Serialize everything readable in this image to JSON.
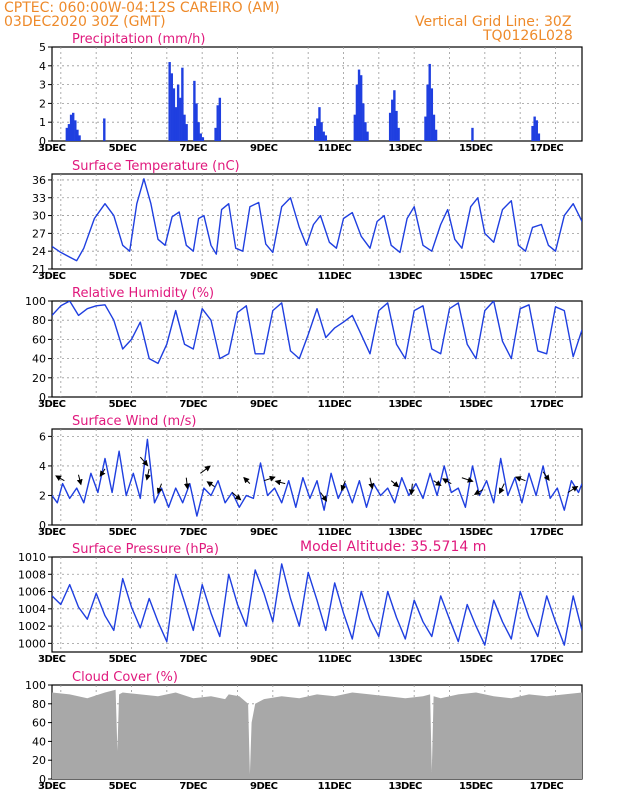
{
  "header": {
    "line1": "CPTEC:   060:00W-04:12S   CAREIRO (AM)",
    "line2": "03DEC2020 30Z (GMT)",
    "grid_note": "Vertical Grid Line: 30Z",
    "code": "TQ0126L028",
    "altitude": "Model Altitude: 35.5714 m"
  },
  "colors": {
    "header": "#ee8a2a",
    "title": "#e0197d",
    "series": "#1f3fe0",
    "cloud": "#a8a8a8",
    "arrow": "#000000"
  },
  "x_ticks": [
    "3DEC",
    "5DEC",
    "7DEC",
    "9DEC",
    "11DEC",
    "13DEC",
    "15DEC",
    "17DEC"
  ],
  "x_ticks_day": [
    3,
    5,
    7,
    9,
    11,
    13,
    15,
    17
  ],
  "chart_data": [
    {
      "type": "bar",
      "title": "Precipitation (mm/h)",
      "x_unit": "day of December 2020",
      "ylim": [
        0,
        5
      ],
      "yticks": [
        0,
        1,
        2,
        3,
        4,
        5
      ],
      "x": [
        3.42,
        3.48,
        3.54,
        3.6,
        3.66,
        3.72,
        3.78,
        4.48,
        6.33,
        6.39,
        6.45,
        6.51,
        6.57,
        6.63,
        6.69,
        6.75,
        6.81,
        7.03,
        7.09,
        7.15,
        7.21,
        7.27,
        7.63,
        7.69,
        7.75,
        10.45,
        10.51,
        10.57,
        10.63,
        10.69,
        10.75,
        11.57,
        11.63,
        11.69,
        11.75,
        11.81,
        11.87,
        11.93,
        12.57,
        12.63,
        12.69,
        12.75,
        12.81,
        13.57,
        13.63,
        13.69,
        13.75,
        13.81,
        13.87,
        14.9,
        16.6,
        16.66,
        16.72,
        16.78
      ],
      "values": [
        0.7,
        0.9,
        1.4,
        1.5,
        1.1,
        0.6,
        0.3,
        1.2,
        4.2,
        3.6,
        2.8,
        1.8,
        3.0,
        2.3,
        3.9,
        1.4,
        0.9,
        3.2,
        2.0,
        1.0,
        0.4,
        0.2,
        0.7,
        1.9,
        2.3,
        0.8,
        1.2,
        1.8,
        1.0,
        0.5,
        0.3,
        1.4,
        3.0,
        3.8,
        3.5,
        2.0,
        1.0,
        0.5,
        1.5,
        2.2,
        2.7,
        1.6,
        0.7,
        1.3,
        3.0,
        4.1,
        2.8,
        1.4,
        0.6,
        0.7,
        0.8,
        1.3,
        1.1,
        0.4
      ]
    },
    {
      "type": "line",
      "title": "Surface Temperature (nC)",
      "x_unit": "day of December 2020",
      "ylim": [
        21,
        37
      ],
      "yticks": [
        21,
        24,
        27,
        30,
        33,
        36
      ],
      "x": [
        3,
        3.25,
        3.5,
        3.7,
        3.9,
        4.2,
        4.5,
        4.75,
        5,
        5.2,
        5.4,
        5.6,
        5.8,
        6,
        6.2,
        6.4,
        6.6,
        6.8,
        7,
        7.15,
        7.3,
        7.5,
        7.65,
        7.8,
        8,
        8.2,
        8.4,
        8.6,
        8.85,
        9.05,
        9.25,
        9.5,
        9.75,
        10,
        10.2,
        10.4,
        10.6,
        10.85,
        11.05,
        11.25,
        11.5,
        11.75,
        12,
        12.2,
        12.4,
        12.6,
        12.85,
        13.05,
        13.25,
        13.5,
        13.75,
        14,
        14.2,
        14.4,
        14.6,
        14.85,
        15.05,
        15.25,
        15.5,
        15.75,
        16,
        16.2,
        16.4,
        16.6,
        16.85,
        17.05,
        17.25,
        17.5,
        17.75,
        18
      ],
      "values": [
        24.8,
        23.8,
        23.0,
        22.4,
        24.5,
        29.5,
        32.0,
        30.0,
        25.0,
        24.0,
        32.0,
        36.2,
        32.0,
        26.0,
        25.0,
        29.8,
        30.6,
        25.0,
        24.0,
        29.5,
        30.0,
        25.0,
        23.5,
        31.0,
        32.0,
        24.5,
        24.0,
        31.5,
        32.2,
        25.2,
        23.8,
        31.5,
        33.0,
        28.0,
        25.0,
        28.5,
        30.0,
        25.5,
        24.5,
        29.5,
        30.5,
        26.5,
        24.5,
        29.0,
        30.0,
        25.0,
        23.8,
        29.5,
        31.5,
        25.0,
        24.0,
        28.5,
        31.0,
        26.0,
        24.5,
        31.5,
        33.0,
        27.0,
        25.5,
        31.0,
        32.5,
        25.0,
        24.0,
        28.0,
        28.5,
        25.0,
        24.0,
        30.0,
        32.0,
        29.0
      ]
    },
    {
      "type": "line",
      "title": "Relative Humidity (%)",
      "x_unit": "day of December 2020",
      "ylim": [
        0,
        100
      ],
      "yticks": [
        0,
        20,
        40,
        60,
        80,
        100
      ],
      "x": [
        3,
        3.25,
        3.5,
        3.75,
        4,
        4.25,
        4.5,
        4.75,
        5,
        5.25,
        5.5,
        5.75,
        6,
        6.25,
        6.5,
        6.75,
        7,
        7.25,
        7.5,
        7.75,
        8,
        8.25,
        8.5,
        8.75,
        9,
        9.25,
        9.5,
        9.75,
        10,
        10.25,
        10.5,
        10.75,
        11,
        11.25,
        11.5,
        11.75,
        12,
        12.25,
        12.5,
        12.75,
        13,
        13.25,
        13.5,
        13.75,
        14,
        14.25,
        14.5,
        14.75,
        15,
        15.25,
        15.5,
        15.75,
        16,
        16.25,
        16.5,
        16.75,
        17,
        17.25,
        17.5,
        17.75,
        18
      ],
      "values": [
        85,
        95,
        100,
        85,
        92,
        95,
        96,
        80,
        50,
        60,
        78,
        40,
        35,
        55,
        90,
        55,
        50,
        92,
        80,
        40,
        45,
        88,
        95,
        45,
        45,
        90,
        98,
        48,
        40,
        65,
        92,
        62,
        72,
        78,
        85,
        65,
        45,
        90,
        98,
        55,
        40,
        90,
        95,
        50,
        45,
        92,
        98,
        55,
        40,
        90,
        100,
        58,
        40,
        92,
        96,
        48,
        45,
        94,
        90,
        42,
        70
      ]
    },
    {
      "type": "line",
      "title": "Surface Wind (m/s)",
      "x_unit": "day of December 2020",
      "ylim": [
        0,
        6.5
      ],
      "yticks": [
        0,
        2,
        4,
        6
      ],
      "x": [
        3,
        3.15,
        3.3,
        3.5,
        3.7,
        3.9,
        4.1,
        4.3,
        4.5,
        4.7,
        4.9,
        5.1,
        5.3,
        5.5,
        5.7,
        5.9,
        6.1,
        6.3,
        6.5,
        6.7,
        6.9,
        7.1,
        7.3,
        7.5,
        7.7,
        7.9,
        8.1,
        8.3,
        8.5,
        8.7,
        8.9,
        9.1,
        9.3,
        9.5,
        9.7,
        9.9,
        10.1,
        10.3,
        10.5,
        10.7,
        10.9,
        11.1,
        11.3,
        11.5,
        11.7,
        11.9,
        12.1,
        12.3,
        12.5,
        12.7,
        12.9,
        13.1,
        13.3,
        13.5,
        13.7,
        13.9,
        14.1,
        14.3,
        14.5,
        14.7,
        14.9,
        15.1,
        15.3,
        15.5,
        15.7,
        15.9,
        16.1,
        16.3,
        16.5,
        16.7,
        16.9,
        17.1,
        17.3,
        17.5,
        17.7,
        17.9,
        18
      ],
      "values": [
        2.0,
        1.5,
        2.8,
        1.8,
        2.5,
        1.5,
        3.5,
        2.2,
        4.5,
        2.2,
        5.0,
        2.0,
        3.5,
        1.8,
        5.8,
        1.5,
        2.5,
        1.2,
        2.5,
        1.5,
        2.8,
        0.6,
        2.5,
        2.0,
        3.0,
        1.5,
        2.2,
        1.2,
        2.0,
        1.8,
        4.2,
        2.0,
        2.5,
        1.5,
        3.0,
        1.2,
        3.2,
        1.8,
        3.0,
        1.0,
        3.5,
        1.8,
        2.8,
        1.5,
        3.0,
        1.2,
        2.8,
        2.0,
        2.5,
        1.5,
        3.2,
        2.0,
        2.8,
        1.8,
        3.5,
        2.0,
        4.0,
        2.2,
        2.5,
        1.2,
        4.0,
        2.0,
        3.0,
        1.5,
        4.5,
        2.0,
        3.2,
        1.5,
        3.5,
        2.0,
        4.0,
        1.8,
        2.5,
        1.0,
        3.0,
        2.2,
        2.8
      ],
      "arrows": [
        [
          3.35,
          3.0,
          -0.7,
          0.4
        ],
        [
          3.75,
          3.4,
          0.2,
          -0.8
        ],
        [
          4.5,
          3.8,
          -0.4,
          -0.6
        ],
        [
          5.5,
          4.6,
          0.6,
          -0.7
        ],
        [
          5.75,
          3.8,
          -0.2,
          -0.9
        ],
        [
          6.1,
          2.8,
          -0.3,
          -0.8
        ],
        [
          6.8,
          3.2,
          0.1,
          -0.9
        ],
        [
          7.2,
          3.5,
          0.8,
          0.6
        ],
        [
          7.6,
          2.6,
          -0.6,
          0.4
        ],
        [
          8.1,
          2.2,
          0.7,
          -0.6
        ],
        [
          8.6,
          2.8,
          -0.5,
          0.5
        ],
        [
          9.0,
          3.0,
          0.9,
          0.3
        ],
        [
          9.6,
          2.8,
          -0.8,
          0.2
        ],
        [
          10.6,
          2.2,
          0.5,
          -0.7
        ],
        [
          11.3,
          3.0,
          -0.3,
          -0.8
        ],
        [
          12.0,
          3.2,
          0.2,
          -0.9
        ],
        [
          12.6,
          3.0,
          0.6,
          -0.5
        ],
        [
          13.2,
          2.8,
          -0.1,
          -0.9
        ],
        [
          13.8,
          3.0,
          0.6,
          -0.4
        ],
        [
          14.3,
          2.8,
          -0.7,
          0.4
        ],
        [
          14.6,
          3.2,
          0.9,
          -0.3
        ],
        [
          15.2,
          2.4,
          -0.7,
          -0.4
        ],
        [
          15.8,
          2.8,
          -0.4,
          -0.8
        ],
        [
          16.4,
          3.0,
          -0.8,
          0.3
        ],
        [
          16.9,
          3.6,
          0.5,
          -0.7
        ],
        [
          17.6,
          2.2,
          0.8,
          0.5
        ]
      ]
    },
    {
      "type": "line",
      "title": "Surface Pressure (hPa)",
      "x_unit": "day of December 2020",
      "ylim": [
        999,
        1010
      ],
      "yticks": [
        1000,
        1002,
        1004,
        1006,
        1008,
        1010
      ],
      "x": [
        3,
        3.25,
        3.5,
        3.75,
        4,
        4.25,
        4.5,
        4.75,
        5,
        5.25,
        5.5,
        5.75,
        6,
        6.25,
        6.5,
        6.75,
        7,
        7.25,
        7.5,
        7.75,
        8,
        8.25,
        8.5,
        8.75,
        9,
        9.25,
        9.5,
        9.75,
        10,
        10.25,
        10.5,
        10.75,
        11,
        11.25,
        11.5,
        11.75,
        12,
        12.25,
        12.5,
        12.75,
        13,
        13.25,
        13.5,
        13.75,
        14,
        14.25,
        14.5,
        14.75,
        15,
        15.25,
        15.5,
        15.75,
        16,
        16.25,
        16.5,
        16.75,
        17,
        17.25,
        17.5,
        17.75,
        18
      ],
      "values": [
        1005.5,
        1004.5,
        1006.8,
        1004.2,
        1002.8,
        1005.8,
        1003.2,
        1001.5,
        1007.5,
        1004.2,
        1001.8,
        1005.2,
        1002.5,
        1000.2,
        1008.0,
        1004.8,
        1001.5,
        1006.8,
        1003.5,
        1000.8,
        1008.0,
        1004.5,
        1002.0,
        1008.5,
        1005.8,
        1002.5,
        1009.2,
        1005.2,
        1002.0,
        1008.2,
        1005.0,
        1001.5,
        1007.0,
        1003.5,
        1000.5,
        1006.0,
        1002.8,
        1000.8,
        1006.0,
        1003.0,
        1000.5,
        1005.0,
        1002.5,
        1000.8,
        1005.5,
        1002.8,
        1000.2,
        1004.5,
        1002.0,
        999.8,
        1005.0,
        1002.5,
        1000.5,
        1006.0,
        1003.0,
        1000.8,
        1005.5,
        1002.5,
        999.8,
        1005.5,
        1001.5
      ]
    },
    {
      "type": "area",
      "title": "Cloud Cover (%)",
      "x_unit": "day of December 2020",
      "ylim": [
        0,
        100
      ],
      "yticks": [
        0,
        20,
        40,
        60,
        80,
        100
      ],
      "x": [
        3,
        3.5,
        4,
        4.5,
        4.8,
        4.85,
        4.9,
        5,
        5.5,
        6,
        6.5,
        7,
        7.5,
        7.9,
        8,
        8.3,
        8.55,
        8.6,
        8.65,
        8.75,
        9,
        9.5,
        10,
        10.5,
        11,
        11.5,
        12,
        12.5,
        13,
        13.5,
        13.7,
        13.75,
        13.8,
        14,
        14.5,
        15,
        15.5,
        16,
        16.5,
        17,
        17.5,
        18
      ],
      "values": [
        92,
        90,
        86,
        92,
        95,
        30,
        90,
        92,
        90,
        88,
        92,
        86,
        88,
        85,
        90,
        88,
        80,
        5,
        60,
        80,
        85,
        88,
        86,
        90,
        88,
        92,
        90,
        88,
        86,
        88,
        90,
        8,
        88,
        86,
        90,
        92,
        88,
        86,
        90,
        88,
        90,
        92
      ]
    }
  ]
}
